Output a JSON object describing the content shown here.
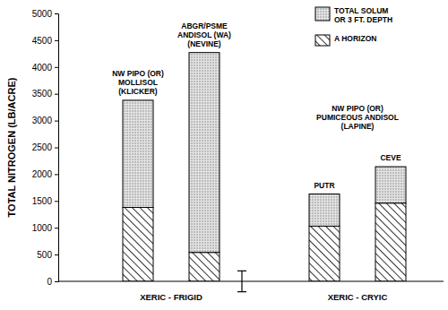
{
  "chart_data": {
    "type": "bar",
    "stacked": true,
    "y_label": "TOTAL NITROGEN (LB/ACRE)",
    "categories": [
      null,
      null,
      null,
      null
    ],
    "group_labels": [
      "XERIC - FRIGID",
      "XERIC - CRYIC"
    ],
    "bar_labels": [
      [
        "NW PIPO (OR)",
        "MOLLISOL",
        "(KLICKER)"
      ],
      [
        "ABGR/PSME",
        "ANDISOL (WA)",
        "(NEVINE)"
      ],
      [
        "PUTR"
      ],
      [
        "CEVE"
      ]
    ],
    "annotations": [
      [
        "NW PIPO (OR)",
        "PUMICEOUS ANDISOL",
        "(LAPINE)"
      ]
    ],
    "series": [
      {
        "name": "A HORIZON",
        "color": "#000000",
        "values": [
          1380,
          540,
          1030,
          1460
        ]
      },
      {
        "name": "TOTAL SOLUM OR 3 FT. DEPTH",
        "color": "#8a8a8a",
        "values": [
          2000,
          3730,
          600,
          680
        ]
      }
    ],
    "error_bar": 390,
    "ylim": [
      0,
      5000
    ],
    "yticks": [
      0,
      500,
      1000,
      1500,
      2000,
      2500,
      3000,
      3500,
      4000,
      4500,
      5000
    ],
    "legend": "top-right",
    "grid": false
  }
}
